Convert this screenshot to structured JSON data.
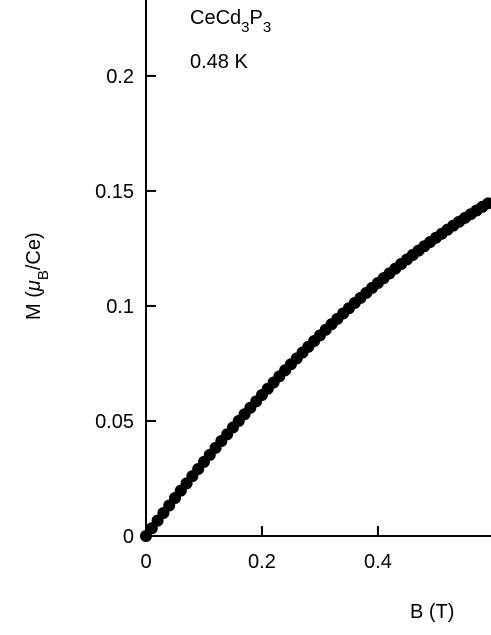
{
  "chart_data": {
    "type": "scatter",
    "annotation_parts": [
      "CeCd",
      "3",
      "P",
      "3"
    ],
    "temperature": "0.48 K",
    "xlabel": "B (T)",
    "ylabel_parts": [
      "M (",
      "μ",
      "B",
      "/Ce)"
    ],
    "color": "#000000",
    "xlim": [
      0,
      0.595
    ],
    "ylim": [
      0,
      0.233
    ],
    "xticks": [
      0,
      0.2,
      0.4
    ],
    "yticks": [
      0,
      0.05,
      0.1,
      0.15,
      0.2
    ],
    "x": [
      0,
      0.01,
      0.02,
      0.03,
      0.04,
      0.05,
      0.06,
      0.07,
      0.08,
      0.09,
      0.1,
      0.11,
      0.12,
      0.13,
      0.14,
      0.15,
      0.16,
      0.17,
      0.18,
      0.19,
      0.2,
      0.21,
      0.22,
      0.23,
      0.24,
      0.25,
      0.26,
      0.27,
      0.28,
      0.29,
      0.3,
      0.31,
      0.32,
      0.33,
      0.34,
      0.35,
      0.36,
      0.37,
      0.38,
      0.39,
      0.4,
      0.41,
      0.42,
      0.43,
      0.44,
      0.45,
      0.46,
      0.47,
      0.48,
      0.49,
      0.5,
      0.51,
      0.52,
      0.53,
      0.54,
      0.55,
      0.56,
      0.57,
      0.58,
      0.59
    ],
    "values": [
      0,
      0.00336,
      0.0067,
      0.01,
      0.01327,
      0.01651,
      0.01971,
      0.02289,
      0.02603,
      0.02914,
      0.03223,
      0.03527,
      0.03829,
      0.04128,
      0.04423,
      0.04716,
      0.05005,
      0.05291,
      0.05574,
      0.05853,
      0.0613,
      0.06403,
      0.06674,
      0.06941,
      0.07205,
      0.07466,
      0.07723,
      0.07978,
      0.08229,
      0.08477,
      0.08723,
      0.08964,
      0.09203,
      0.09439,
      0.09671,
      0.09901,
      0.10127,
      0.1035,
      0.1057,
      0.10786,
      0.11,
      0.1121,
      0.11418,
      0.11622,
      0.11823,
      0.12021,
      0.12215,
      0.12407,
      0.12595,
      0.1278,
      0.12963,
      0.13141,
      0.13317,
      0.1349,
      0.13659,
      0.13826,
      0.13989,
      0.14149,
      0.14306,
      0.14459
    ]
  }
}
